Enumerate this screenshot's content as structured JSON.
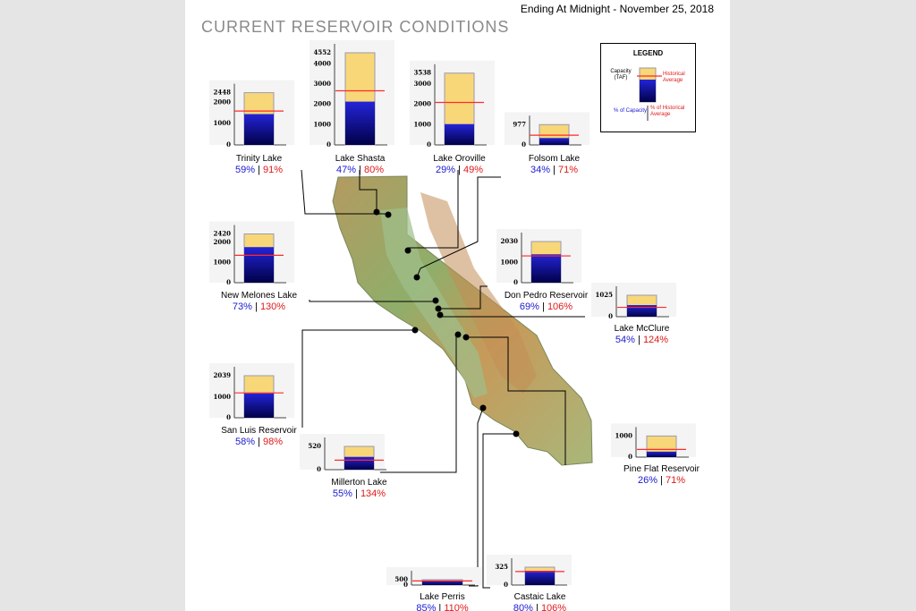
{
  "header": {
    "date_label": "Ending At Midnight - November 25, 2018",
    "title": "CURRENT RESERVOIR CONDITIONS"
  },
  "legend": {
    "title": "LEGEND",
    "capacity_label": "Capacity (TAF)",
    "historical_label": "Historical Average",
    "pct_capacity_label": "% of Capacity",
    "pct_hist_label": "% of Historical Average"
  },
  "colors": {
    "capacity_fill": "#f8d779",
    "storage_top": "#2424d8",
    "storage_bottom": "#000048",
    "historical_line": "#ff2a2a",
    "pct_capacity_text": "#1a1ad0",
    "pct_hist_text": "#e01818"
  },
  "chart_data": {
    "type": "bar",
    "title": "CURRENT RESERVOIR CONDITIONS",
    "subtitle": "Ending At Midnight - November 25, 2018",
    "ylabel": "Capacity (TAF)",
    "reservoirs": [
      {
        "name": "Trinity Lake",
        "capacity": 2448,
        "pct_capacity": "59%",
        "pct_hist": "91%",
        "capacity_fraction": 0.59,
        "hist_fraction": 0.648,
        "ticks": [
          0,
          1000,
          2000,
          2448
        ]
      },
      {
        "name": "Lake Shasta",
        "capacity": 4552,
        "pct_capacity": "47%",
        "pct_hist": "80%",
        "capacity_fraction": 0.47,
        "hist_fraction": 0.5875,
        "ticks": [
          0,
          1000,
          2000,
          3000,
          4000,
          4552
        ]
      },
      {
        "name": "Lake Oroville",
        "capacity": 3538,
        "pct_capacity": "29%",
        "pct_hist": "49%",
        "capacity_fraction": 0.29,
        "hist_fraction": 0.592,
        "ticks": [
          0,
          1000,
          2000,
          3000,
          3538
        ]
      },
      {
        "name": "Folsom Lake",
        "capacity": 977,
        "pct_capacity": "34%",
        "pct_hist": "71%",
        "capacity_fraction": 0.34,
        "hist_fraction": 0.479,
        "ticks": [
          0,
          977
        ]
      },
      {
        "name": "New Melones Lake",
        "capacity": 2420,
        "pct_capacity": "73%",
        "pct_hist": "130%",
        "capacity_fraction": 0.73,
        "hist_fraction": 0.5615,
        "ticks": [
          0,
          1000,
          2000,
          2420
        ]
      },
      {
        "name": "Don Pedro Reservoir",
        "capacity": 2030,
        "pct_capacity": "69%",
        "pct_hist": "106%",
        "capacity_fraction": 0.69,
        "hist_fraction": 0.651,
        "ticks": [
          0,
          1000,
          2030
        ]
      },
      {
        "name": "Lake McClure",
        "capacity": 1025,
        "pct_capacity": "54%",
        "pct_hist": "124%",
        "capacity_fraction": 0.54,
        "hist_fraction": 0.435,
        "ticks": [
          0,
          1025
        ]
      },
      {
        "name": "San Luis Reservoir",
        "capacity": 2039,
        "pct_capacity": "58%",
        "pct_hist": "98%",
        "capacity_fraction": 0.58,
        "hist_fraction": 0.592,
        "ticks": [
          0,
          1000,
          2039
        ]
      },
      {
        "name": "Millerton Lake",
        "capacity": 520,
        "pct_capacity": "55%",
        "pct_hist": "134%",
        "capacity_fraction": 0.55,
        "hist_fraction": 0.41,
        "ticks": [
          0,
          520
        ]
      },
      {
        "name": "Pine Flat Reservoir",
        "capacity": 1000,
        "pct_capacity": "26%",
        "pct_hist": "71%",
        "capacity_fraction": 0.26,
        "hist_fraction": 0.366,
        "ticks": [
          0,
          1000
        ]
      },
      {
        "name": "Lake Perris",
        "capacity": 500,
        "pct_capacity": "85%",
        "pct_hist": "110%",
        "capacity_fraction": 0.85,
        "hist_fraction": 0.77,
        "ticks": [
          0,
          500
        ]
      },
      {
        "name": "Castaic Lake",
        "capacity": 325,
        "pct_capacity": "80%",
        "pct_hist": "106%",
        "capacity_fraction": 0.8,
        "hist_fraction": 0.755,
        "ticks": [
          0,
          325
        ]
      }
    ]
  }
}
